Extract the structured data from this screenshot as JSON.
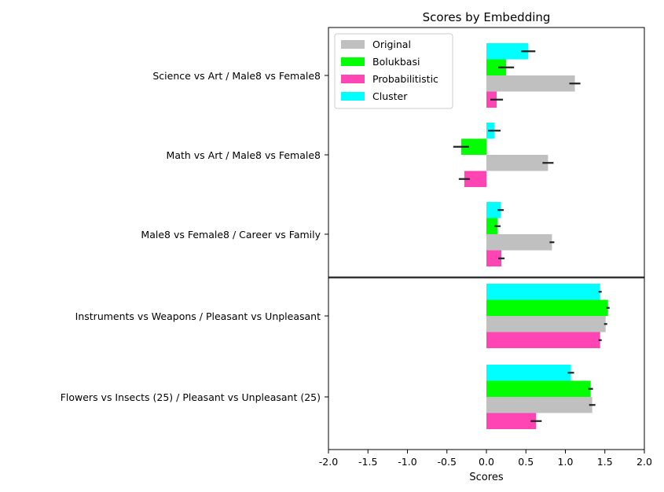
{
  "chart_data": {
    "type": "bar",
    "orientation": "horizontal",
    "title": "Scores by Embedding",
    "xlabel": "Scores",
    "ylabel": "",
    "xlim": [
      -2.0,
      2.0
    ],
    "xticks": [
      "-2.0",
      "-1.5",
      "-1.0",
      "-0.5",
      "0.0",
      "0.5",
      "1.0",
      "1.5",
      "2.0"
    ],
    "categories": [
      "Science vs Art / Male8 vs Female8",
      "Math vs Art / Male8 vs Female8",
      "Male8 vs Female8 /  Career vs Family",
      "Instruments vs Weapons /  Pleasant vs Unpleasant",
      "Flowers vs Insects (25) / Pleasant vs Unpleasant (25)"
    ],
    "separator_after_category_index": 2,
    "legend": {
      "placement": "top-left"
    },
    "grid": false,
    "series": [
      {
        "name": "Original",
        "color": "#c0c0c0",
        "values": [
          1.12,
          0.78,
          0.83,
          1.51,
          1.34
        ],
        "errors": [
          0.07,
          0.07,
          0.03,
          0.02,
          0.04
        ]
      },
      {
        "name": "Bolukbasi",
        "color": "#00ff00",
        "values": [
          0.25,
          -0.32,
          0.14,
          1.54,
          1.32
        ],
        "errors": [
          0.1,
          0.1,
          0.04,
          0.02,
          0.03
        ]
      },
      {
        "name": "Probabilitistic",
        "color": "#ff44b4",
        "values": [
          0.13,
          -0.28,
          0.19,
          1.44,
          0.63
        ],
        "errors": [
          0.08,
          0.07,
          0.04,
          0.02,
          0.07
        ]
      },
      {
        "name": "Cluster",
        "color": "#00ffff",
        "values": [
          0.53,
          0.1,
          0.18,
          1.44,
          1.07
        ],
        "errors": [
          0.09,
          0.08,
          0.04,
          0.02,
          0.04
        ]
      }
    ],
    "bar_order_top_to_bottom": [
      "Cluster",
      "Bolukbasi",
      "Original",
      "Probabilitistic"
    ],
    "error_bar_color": "#222222"
  }
}
